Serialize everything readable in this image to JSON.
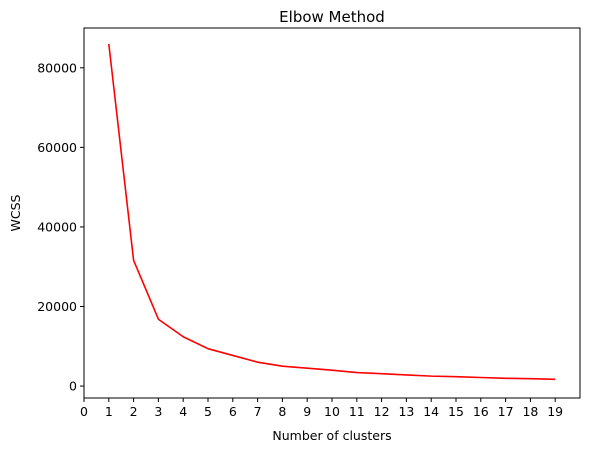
{
  "chart_data": {
    "type": "line",
    "title": "Elbow Method",
    "xlabel": "Number of clusters",
    "ylabel": "WCSS",
    "x": [
      1,
      2,
      3,
      4,
      5,
      6,
      7,
      8,
      9,
      10,
      11,
      12,
      13,
      14,
      15,
      16,
      17,
      18,
      19
    ],
    "series": [
      {
        "color": "#ff0000",
        "values": [
          86000,
          31600,
          16800,
          12400,
          9400,
          7700,
          6000,
          5000,
          4500,
          4000,
          3400,
          3100,
          2800,
          2500,
          2350,
          2150,
          1950,
          1850,
          1700
        ]
      }
    ],
    "xticks": [
      0,
      1,
      2,
      3,
      4,
      5,
      6,
      7,
      8,
      9,
      10,
      11,
      12,
      13,
      14,
      15,
      16,
      17,
      18,
      19
    ],
    "yticks": [
      0,
      20000,
      40000,
      60000,
      80000
    ],
    "xlim": [
      0,
      20
    ],
    "ylim": [
      -3000,
      90000
    ],
    "grid": false,
    "legend": "none"
  }
}
